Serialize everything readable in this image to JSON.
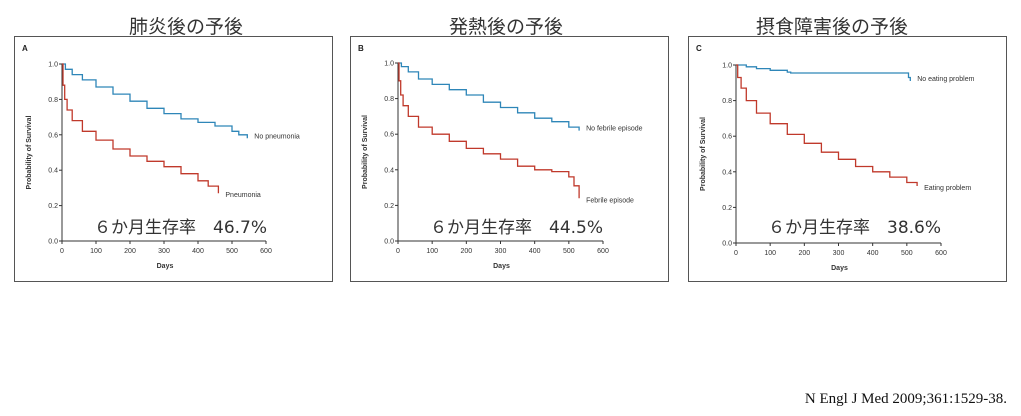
{
  "citation": "N Engl J Med 2009;361:1529-38.",
  "chart_data": [
    {
      "type": "line",
      "panel_label": "A",
      "heading": "肺炎後の予後",
      "annotation": "６か月生存率　46.7%",
      "xlabel": "Days",
      "ylabel": "Probability of Survival",
      "xlim": [
        0,
        600
      ],
      "ylim": [
        0,
        1.0
      ],
      "x_ticks": [
        "0",
        "100",
        "200",
        "300",
        "400",
        "500",
        "600"
      ],
      "y_ticks": [
        "0.0",
        "0.2",
        "0.4",
        "0.6",
        "0.8",
        "1.0"
      ],
      "series": [
        {
          "name": "No pneumonia",
          "color": "#2e86b8",
          "x": [
            0,
            10,
            30,
            60,
            100,
            150,
            200,
            250,
            300,
            350,
            400,
            450,
            500,
            520,
            545
          ],
          "y": [
            1.0,
            0.97,
            0.94,
            0.91,
            0.87,
            0.83,
            0.79,
            0.75,
            0.72,
            0.69,
            0.67,
            0.65,
            0.62,
            0.6,
            0.58
          ]
        },
        {
          "name": "Pneumonia",
          "color": "#c0392b",
          "x": [
            0,
            3,
            8,
            15,
            30,
            60,
            100,
            150,
            200,
            250,
            300,
            350,
            400,
            430,
            460
          ],
          "y": [
            1.0,
            0.88,
            0.8,
            0.74,
            0.68,
            0.62,
            0.57,
            0.52,
            0.48,
            0.45,
            0.42,
            0.38,
            0.34,
            0.31,
            0.27
          ]
        }
      ]
    },
    {
      "type": "line",
      "panel_label": "B",
      "heading": "発熱後の予後",
      "annotation": "６か月生存率　44.5%",
      "xlabel": "Days",
      "ylabel": "Probability of Survival",
      "xlim": [
        0,
        600
      ],
      "ylim": [
        0,
        1.0
      ],
      "x_ticks": [
        "0",
        "100",
        "200",
        "300",
        "400",
        "500",
        "600"
      ],
      "y_ticks": [
        "0.0",
        "0.2",
        "0.4",
        "0.6",
        "0.8",
        "1.0"
      ],
      "series": [
        {
          "name": "No febrile episode",
          "color": "#2e86b8",
          "x": [
            0,
            10,
            30,
            60,
            100,
            150,
            200,
            250,
            300,
            350,
            400,
            450,
            500,
            530
          ],
          "y": [
            1.0,
            0.98,
            0.95,
            0.91,
            0.88,
            0.85,
            0.82,
            0.78,
            0.75,
            0.72,
            0.69,
            0.67,
            0.64,
            0.62
          ]
        },
        {
          "name": "Febrile episode",
          "color": "#c0392b",
          "x": [
            0,
            3,
            8,
            15,
            30,
            60,
            100,
            150,
            200,
            250,
            300,
            350,
            400,
            450,
            500,
            515,
            530
          ],
          "y": [
            1.0,
            0.9,
            0.82,
            0.76,
            0.7,
            0.64,
            0.6,
            0.56,
            0.52,
            0.49,
            0.46,
            0.42,
            0.4,
            0.39,
            0.36,
            0.31,
            0.24
          ]
        }
      ]
    },
    {
      "type": "line",
      "panel_label": "C",
      "heading": "摂食障害後の予後",
      "annotation": "６か月生存率　38.6%",
      "xlabel": "Days",
      "ylabel": "Probability of Survival",
      "xlim": [
        0,
        600
      ],
      "ylim": [
        0,
        1.0
      ],
      "x_ticks": [
        "0",
        "100",
        "200",
        "300",
        "400",
        "500",
        "600"
      ],
      "y_ticks": [
        "0.0",
        "0.2",
        "0.4",
        "0.6",
        "0.8",
        "1.0"
      ],
      "series": [
        {
          "name": "No eating problem",
          "color": "#2e86b8",
          "x": [
            0,
            30,
            60,
            100,
            150,
            160,
            300,
            400,
            500,
            505,
            510
          ],
          "y": [
            1.0,
            0.99,
            0.98,
            0.97,
            0.96,
            0.955,
            0.955,
            0.955,
            0.955,
            0.93,
            0.91
          ]
        },
        {
          "name": "Eating problem",
          "color": "#c0392b",
          "x": [
            0,
            5,
            15,
            30,
            60,
            100,
            150,
            200,
            250,
            300,
            350,
            400,
            450,
            500,
            530
          ],
          "y": [
            1.0,
            0.93,
            0.87,
            0.8,
            0.73,
            0.67,
            0.61,
            0.56,
            0.51,
            0.47,
            0.43,
            0.4,
            0.37,
            0.34,
            0.32
          ]
        }
      ]
    }
  ]
}
